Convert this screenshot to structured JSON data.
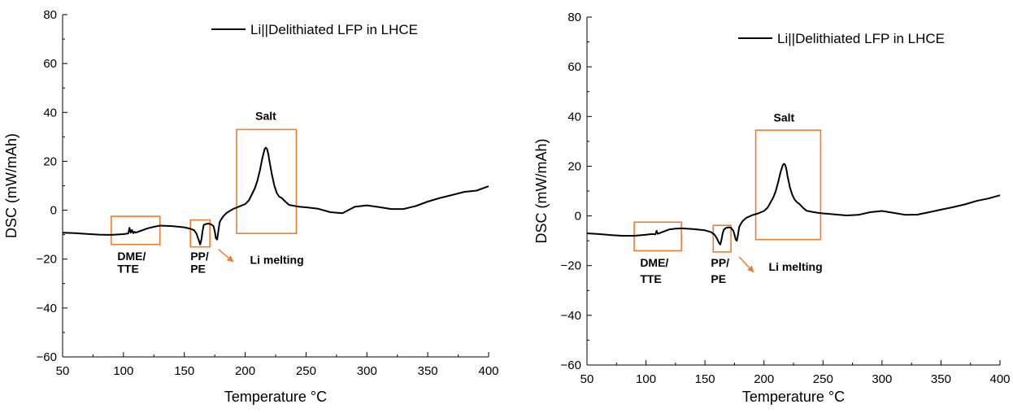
{
  "colors": {
    "line": "#000000",
    "annotation": "#ED7D31"
  },
  "chart_data": [
    {
      "type": "line",
      "xlabel": "Temperature °C",
      "ylabel": "DSC (mW/mAh)",
      "xlim": [
        50,
        400
      ],
      "ylim": [
        -60,
        80
      ],
      "xticks": [
        50,
        100,
        150,
        200,
        250,
        300,
        350,
        400
      ],
      "yticks": [
        -60,
        -40,
        -20,
        0,
        20,
        40,
        60,
        80
      ],
      "legend": "top-right",
      "series": [
        {
          "name": "Li||Delithiated LFP in LHCE",
          "x": [
            50,
            60,
            70,
            80,
            90,
            100,
            104,
            105,
            106,
            107,
            108,
            109,
            110,
            115,
            120,
            125,
            130,
            140,
            150,
            155,
            158,
            160,
            162,
            163,
            164,
            165,
            166,
            168,
            170,
            172,
            174,
            175,
            176,
            177,
            178,
            179,
            180,
            182,
            185,
            190,
            195,
            200,
            203,
            205,
            208,
            210,
            212,
            214,
            216,
            217,
            218,
            219,
            220,
            222,
            224,
            226,
            228,
            230,
            233,
            236,
            240,
            245,
            250,
            260,
            270,
            280,
            290,
            300,
            310,
            320,
            330,
            340,
            350,
            360,
            370,
            380,
            390,
            400
          ],
          "y": [
            -9.2,
            -9.4,
            -9.7,
            -10.0,
            -10.1,
            -9.8,
            -9.5,
            -7.2,
            -9.2,
            -8.1,
            -9.4,
            -8.8,
            -9.2,
            -8.3,
            -7.4,
            -6.8,
            -6.3,
            -6.5,
            -7.0,
            -7.6,
            -8.2,
            -9.6,
            -12.5,
            -14.0,
            -12.0,
            -8.5,
            -6.0,
            -5.6,
            -5.5,
            -5.8,
            -6.5,
            -8.5,
            -11.5,
            -12.0,
            -8.5,
            -5.0,
            -4.0,
            -2.5,
            -1.0,
            0.5,
            1.5,
            2.5,
            4.0,
            6.0,
            9.0,
            12.0,
            16.0,
            21.0,
            25.0,
            25.6,
            25.0,
            23.0,
            20.0,
            14.5,
            10.0,
            7.0,
            5.5,
            5.0,
            3.5,
            2.2,
            1.8,
            1.4,
            1.2,
            0.6,
            -0.8,
            -1.2,
            1.4,
            2.0,
            1.3,
            0.5,
            0.5,
            1.7,
            3.5,
            5.0,
            6.2,
            7.5,
            8.0,
            9.8
          ]
        }
      ],
      "annotations": [
        {
          "text": "Salt",
          "x": 217,
          "y": 37
        },
        {
          "text": "DME/",
          "x": 95,
          "y": -20.5
        },
        {
          "text": "TTE",
          "x": 95,
          "y": -25.5
        },
        {
          "text": "PP/",
          "x": 155,
          "y": -20.5
        },
        {
          "text": "PE",
          "x": 155,
          "y": -25.5
        },
        {
          "text": "Li melting",
          "x": 204,
          "y": -22
        }
      ]
    },
    {
      "type": "line",
      "xlabel": "Temperature °C",
      "ylabel": "DSC (mW/mAh)",
      "xlim": [
        50,
        400
      ],
      "ylim": [
        -60,
        80
      ],
      "xticks": [
        50,
        100,
        150,
        200,
        250,
        300,
        350,
        400
      ],
      "yticks": [
        -60,
        -40,
        -20,
        0,
        20,
        40,
        60,
        80
      ],
      "legend": "top-right",
      "series": [
        {
          "name": "Li||Delithiated LFP in LHCE",
          "x": [
            50,
            60,
            70,
            80,
            90,
            100,
            105,
            108,
            109,
            110,
            115,
            120,
            125,
            130,
            140,
            150,
            155,
            158,
            160,
            162,
            163,
            164,
            165,
            166,
            168,
            170,
            172,
            174,
            175,
            176,
            177,
            178,
            179,
            180,
            182,
            185,
            190,
            195,
            200,
            203,
            205,
            208,
            210,
            212,
            214,
            216,
            217,
            218,
            219,
            220,
            222,
            224,
            226,
            228,
            230,
            233,
            236,
            240,
            245,
            250,
            260,
            270,
            280,
            290,
            300,
            310,
            320,
            330,
            340,
            350,
            360,
            370,
            380,
            390,
            400
          ],
          "y": [
            -7.0,
            -7.3,
            -7.7,
            -8.0,
            -8.0,
            -7.6,
            -7.3,
            -7.4,
            -6.0,
            -7.2,
            -6.3,
            -5.4,
            -5.1,
            -5.0,
            -5.3,
            -5.8,
            -6.5,
            -7.5,
            -9.0,
            -11.0,
            -11.5,
            -9.5,
            -7.0,
            -5.5,
            -4.8,
            -4.6,
            -4.8,
            -6.0,
            -7.5,
            -9.5,
            -10.0,
            -7.5,
            -4.5,
            -3.5,
            -2.0,
            -0.8,
            0.3,
            1.0,
            2.0,
            3.3,
            5.0,
            7.5,
            10.0,
            13.5,
            17.5,
            20.5,
            21.0,
            20.5,
            18.8,
            16.0,
            11.5,
            8.5,
            6.5,
            5.5,
            4.8,
            3.3,
            2.1,
            1.7,
            1.3,
            1.0,
            0.6,
            0.2,
            0.4,
            1.5,
            2.0,
            1.2,
            0.4,
            0.5,
            1.5,
            2.5,
            3.5,
            4.6,
            6.0,
            7.0,
            8.3
          ]
        }
      ],
      "annotations": [
        {
          "text": "Salt",
          "x": 217,
          "y": 38
        },
        {
          "text": "DME/",
          "x": 95,
          "y": -20.5
        },
        {
          "text": "TTE",
          "x": 95,
          "y": -27
        },
        {
          "text": "PP/",
          "x": 155,
          "y": -20.5
        },
        {
          "text": "PE",
          "x": 155,
          "y": -27
        },
        {
          "text": "Li melting",
          "x": 204,
          "y": -22
        }
      ]
    }
  ]
}
